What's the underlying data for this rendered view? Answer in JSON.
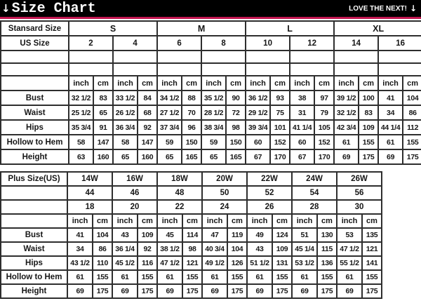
{
  "header": {
    "bg_color": "#000000",
    "accent_line_color": "#c2154f",
    "left_arrow": "↓",
    "title": "Size Chart",
    "right_text": "LOVE THE NEXT!",
    "right_arrow": "↓"
  },
  "standard_table": {
    "size_label": "Stansard Size",
    "size_groups": [
      "S",
      "M",
      "L",
      "XL"
    ],
    "us_size_label": "US Size",
    "us_sizes": [
      "2",
      "4",
      "6",
      "8",
      "10",
      "12",
      "14",
      "16"
    ],
    "empty_row_count": 2,
    "unit_headers": [
      "inch",
      "cm"
    ],
    "rows": [
      {
        "label": "Bust",
        "values": [
          "32 1/2",
          "83",
          "33 1/2",
          "84",
          "34 1/2",
          "88",
          "35 1/2",
          "90",
          "36 1/2",
          "93",
          "38",
          "97",
          "39 1/2",
          "100",
          "41",
          "104"
        ]
      },
      {
        "label": "Waist",
        "values": [
          "25 1/2",
          "65",
          "26 1/2",
          "68",
          "27 1/2",
          "70",
          "28 1/2",
          "72",
          "29 1/2",
          "75",
          "31",
          "79",
          "32 1/2",
          "83",
          "34",
          "86"
        ]
      },
      {
        "label": "Hips",
        "values": [
          "35 3/4",
          "91",
          "36 3/4",
          "92",
          "37 3/4",
          "96",
          "38 3/4",
          "98",
          "39 3/4",
          "101",
          "41 1/4",
          "105",
          "42 3/4",
          "109",
          "44 1/4",
          "112"
        ]
      },
      {
        "label": "Hollow to Hem",
        "values": [
          "58",
          "147",
          "58",
          "147",
          "59",
          "150",
          "59",
          "150",
          "60",
          "152",
          "60",
          "152",
          "61",
          "155",
          "61",
          "155"
        ]
      },
      {
        "label": "Height",
        "values": [
          "63",
          "160",
          "65",
          "160",
          "65",
          "165",
          "65",
          "165",
          "67",
          "170",
          "67",
          "170",
          "69",
          "175",
          "69",
          "175"
        ]
      }
    ]
  },
  "plus_table": {
    "size_label": "Plus Size(US)",
    "plus_sizes": [
      "14W",
      "16W",
      "18W",
      "20W",
      "22W",
      "24W",
      "26W"
    ],
    "second_row_sizes": [
      "44",
      "46",
      "48",
      "50",
      "52",
      "54",
      "56"
    ],
    "third_row_sizes": [
      "18",
      "20",
      "22",
      "24",
      "26",
      "28",
      "30"
    ],
    "unit_headers": [
      "inch",
      "cm"
    ],
    "rows": [
      {
        "label": "Bust",
        "values": [
          "41",
          "104",
          "43",
          "109",
          "45",
          "114",
          "47",
          "119",
          "49",
          "124",
          "51",
          "130",
          "53",
          "135"
        ]
      },
      {
        "label": "Waist",
        "values": [
          "34",
          "86",
          "36 1/4",
          "92",
          "38 1/2",
          "98",
          "40 3/4",
          "104",
          "43",
          "109",
          "45 1/4",
          "115",
          "47 1/2",
          "121"
        ]
      },
      {
        "label": "Hips",
        "values": [
          "43 1/2",
          "110",
          "45 1/2",
          "116",
          "47 1/2",
          "121",
          "49 1/2",
          "126",
          "51 1/2",
          "131",
          "53 1/2",
          "136",
          "55 1/2",
          "141"
        ]
      },
      {
        "label": "Hollow to Hem",
        "values": [
          "61",
          "155",
          "61",
          "155",
          "61",
          "155",
          "61",
          "155",
          "61",
          "155",
          "61",
          "155",
          "61",
          "155"
        ]
      },
      {
        "label": "Height",
        "values": [
          "69",
          "175",
          "69",
          "175",
          "69",
          "175",
          "69",
          "175",
          "69",
          "175",
          "69",
          "175",
          "69",
          "175"
        ]
      }
    ]
  }
}
